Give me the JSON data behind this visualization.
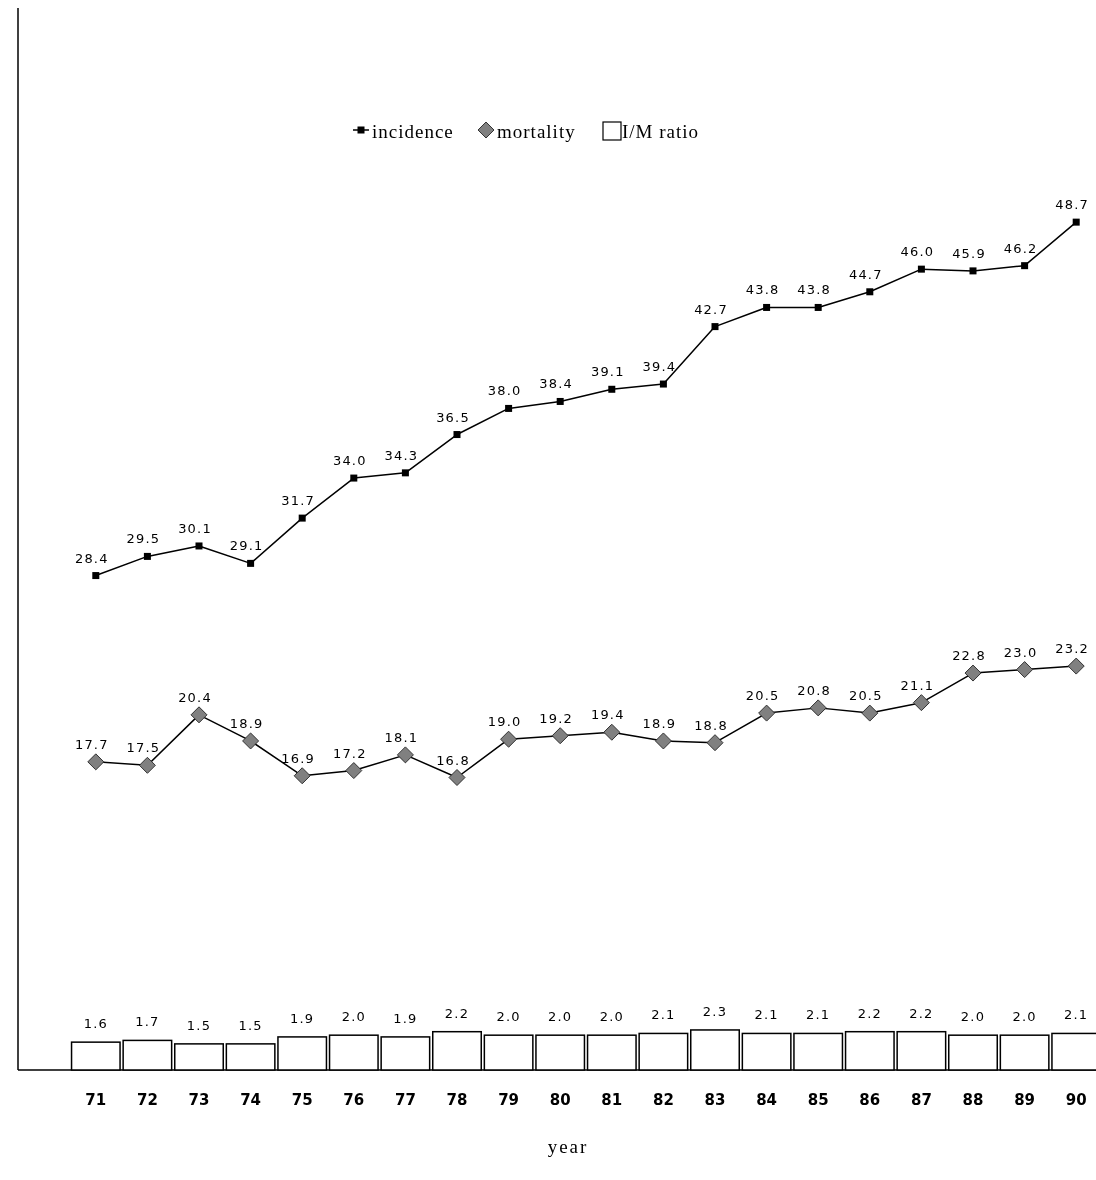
{
  "chart_data": {
    "type": "line",
    "xlabel": "year",
    "categories": [
      "71",
      "72",
      "73",
      "74",
      "75",
      "76",
      "77",
      "78",
      "79",
      "80",
      "81",
      "82",
      "83",
      "84",
      "85",
      "86",
      "87",
      "88",
      "89",
      "90"
    ],
    "series": [
      {
        "name": "incidence",
        "color": "#000000",
        "marker": "square",
        "values": [
          28.4,
          29.5,
          30.1,
          29.1,
          31.7,
          34.0,
          34.3,
          36.5,
          38.0,
          38.4,
          39.1,
          39.4,
          42.7,
          43.8,
          43.8,
          44.7,
          46.0,
          45.9,
          46.2,
          48.7
        ],
        "value_labels": [
          "28.4",
          "29.5",
          "30.1",
          "29.1",
          "31.7",
          "34.0",
          "34.3",
          "36.5",
          "38.0",
          "38.4",
          "39.1",
          "39.4",
          "42.7",
          "43.8",
          "43.8",
          "44.7",
          "46.0",
          "45.9",
          "46.2",
          "48.7"
        ]
      },
      {
        "name": "mortality",
        "color": "#808080",
        "marker": "diamond",
        "values": [
          17.7,
          17.5,
          20.4,
          18.9,
          16.9,
          17.2,
          18.1,
          16.8,
          19.0,
          19.2,
          19.4,
          18.9,
          18.8,
          20.5,
          20.8,
          20.5,
          21.1,
          22.8,
          23.0,
          23.2
        ],
        "value_labels": [
          "17.7",
          "17.5",
          "20.4",
          "18.9",
          "16.9",
          "17.2",
          "18.1",
          "16.8",
          "19.0",
          "19.2",
          "19.4",
          "18.9",
          "18.8",
          "20.5",
          "20.8",
          "20.5",
          "21.1",
          "22.8",
          "23.0",
          "23.2"
        ]
      },
      {
        "name": "I/M ratio",
        "type": "bar",
        "color": "#ffffff",
        "values": [
          1.6,
          1.7,
          1.5,
          1.5,
          1.9,
          2.0,
          1.9,
          2.2,
          2.0,
          2.0,
          2.0,
          2.1,
          2.3,
          2.1,
          2.1,
          2.2,
          2.2,
          2.0,
          2.0,
          2.1
        ],
        "value_labels": [
          "1.6",
          "1.7",
          "1.5",
          "1.5",
          "1.9",
          "2.0",
          "1.9",
          "2.2",
          "2.0",
          "2.0",
          "2.0",
          "2.1",
          "2.3",
          "2.1",
          "2.1",
          "2.2",
          "2.2",
          "2.0",
          "2.0",
          "2.1"
        ]
      }
    ],
    "ylim": [
      0,
      61
    ],
    "tick_labels": "x",
    "legend": "top",
    "line_style": "solid"
  }
}
